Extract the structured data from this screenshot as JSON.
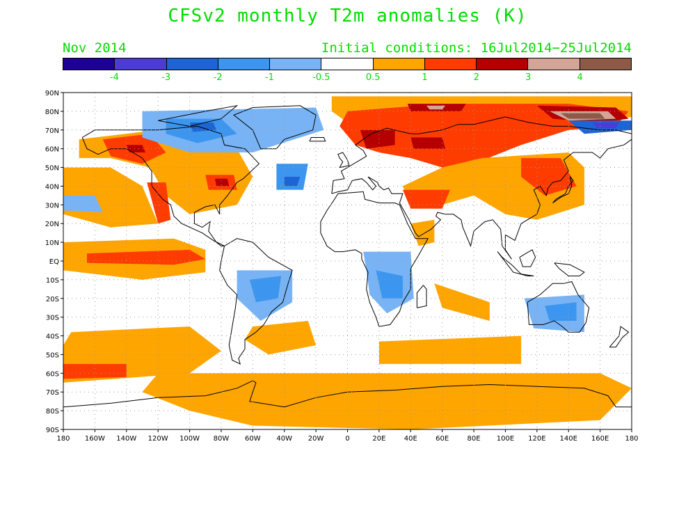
{
  "header": {
    "title": "CFSv2 monthly T2m anomalies (K)",
    "period": "Nov 2014",
    "initial_conditions": "Initial conditions: 16Jul2014−25Jul2014",
    "text_color": "#00dd00"
  },
  "legend": {
    "colors": [
      "#1f0096",
      "#4c3cd2",
      "#1e64d2",
      "#3c96f0",
      "#78b4f5",
      "#ffffff",
      "#ffa500",
      "#ff3c00",
      "#b40000",
      "#d2a596",
      "#8c5a46"
    ],
    "labels": [
      "-4",
      "-3",
      "-2",
      "-1",
      "-0.5",
      "0.5",
      "1",
      "2",
      "3",
      "4"
    ]
  },
  "axes": {
    "lat_labels": [
      "90N",
      "80N",
      "70N",
      "60N",
      "50N",
      "40N",
      "30N",
      "20N",
      "10N",
      "EQ",
      "10S",
      "20S",
      "30S",
      "40S",
      "50S",
      "60S",
      "70S",
      "80S",
      "90S"
    ],
    "lon_labels": [
      "180",
      "160W",
      "140W",
      "120W",
      "100W",
      "80W",
      "60W",
      "40W",
      "20W",
      "0",
      "20E",
      "40E",
      "60E",
      "80E",
      "100E",
      "120E",
      "140E",
      "160E",
      "180"
    ]
  },
  "map": {
    "projection": "equirectangular",
    "lon_range": [
      -180,
      180
    ],
    "lat_range": [
      -90,
      90
    ],
    "grid": "dotted",
    "anomaly_regions": [
      {
        "name": "arctic-ocean-warm",
        "color": "#ffa500",
        "points": [
          [
            -10,
            88
          ],
          [
            180,
            88
          ],
          [
            180,
            77
          ],
          [
            150,
            74
          ],
          [
            120,
            76
          ],
          [
            90,
            76
          ],
          [
            60,
            73
          ],
          [
            40,
            70
          ],
          [
            20,
            72
          ],
          [
            0,
            74
          ],
          [
            -10,
            80
          ]
        ]
      },
      {
        "name": "siberia-warm",
        "color": "#ff3c00",
        "points": [
          [
            0,
            80
          ],
          [
            60,
            84
          ],
          [
            140,
            84
          ],
          [
            178,
            80
          ],
          [
            170,
            72
          ],
          [
            140,
            70
          ],
          [
            110,
            62
          ],
          [
            80,
            52
          ],
          [
            60,
            50
          ],
          [
            40,
            55
          ],
          [
            20,
            58
          ],
          [
            5,
            62
          ],
          [
            -5,
            72
          ]
        ]
      },
      {
        "name": "siberia-strong",
        "color": "#b40000",
        "points": [
          [
            120,
            83
          ],
          [
            170,
            82
          ],
          [
            178,
            76
          ],
          [
            160,
            74
          ],
          [
            130,
            76
          ]
        ]
      },
      {
        "name": "east-siberia-extreme",
        "color": "#d2a596",
        "points": [
          [
            128,
            80
          ],
          [
            165,
            80
          ],
          [
            170,
            76
          ],
          [
            140,
            75
          ]
        ]
      },
      {
        "name": "east-siberia-max",
        "color": "#8c5a46",
        "points": [
          [
            135,
            79
          ],
          [
            160,
            79
          ],
          [
            163,
            76
          ],
          [
            140,
            76
          ]
        ]
      },
      {
        "name": "north-siberia-strong",
        "color": "#b40000",
        "points": [
          [
            38,
            84
          ],
          [
            75,
            84
          ],
          [
            72,
            80
          ],
          [
            40,
            80
          ]
        ]
      },
      {
        "name": "north-siberia-peak",
        "color": "#d2a596",
        "points": [
          [
            50,
            83
          ],
          [
            62,
            83
          ],
          [
            60,
            81
          ],
          [
            52,
            81
          ]
        ]
      },
      {
        "name": "west-siberia-strong",
        "color": "#b40000",
        "points": [
          [
            40,
            66
          ],
          [
            60,
            66
          ],
          [
            62,
            60
          ],
          [
            42,
            60
          ]
        ]
      },
      {
        "name": "scandinavia-warm",
        "color": "#b40000",
        "points": [
          [
            8,
            70
          ],
          [
            30,
            70
          ],
          [
            30,
            62
          ],
          [
            12,
            60
          ]
        ]
      },
      {
        "name": "east-asia-warm",
        "color": "#ffa500",
        "points": [
          [
            85,
            55
          ],
          [
            140,
            58
          ],
          [
            150,
            50
          ],
          [
            150,
            30
          ],
          [
            120,
            22
          ],
          [
            100,
            25
          ],
          [
            80,
            35
          ],
          [
            60,
            30
          ],
          [
            40,
            30
          ],
          [
            35,
            40
          ],
          [
            60,
            50
          ]
        ]
      },
      {
        "name": "east-asia-strong",
        "color": "#ff3c00",
        "points": [
          [
            110,
            55
          ],
          [
            135,
            55
          ],
          [
            145,
            40
          ],
          [
            125,
            35
          ],
          [
            110,
            45
          ]
        ]
      },
      {
        "name": "middle-east-warm",
        "color": "#ff3c00",
        "points": [
          [
            35,
            38
          ],
          [
            65,
            38
          ],
          [
            60,
            28
          ],
          [
            40,
            28
          ]
        ]
      },
      {
        "name": "arabia-warm",
        "color": "#ffa500",
        "points": [
          [
            40,
            20
          ],
          [
            55,
            22
          ],
          [
            55,
            10
          ],
          [
            45,
            8
          ]
        ]
      },
      {
        "name": "north-america-warm",
        "color": "#ffa500",
        "points": [
          [
            -170,
            65
          ],
          [
            -120,
            70
          ],
          0,
          [
            -70,
            60
          ],
          [
            -60,
            45
          ],
          [
            -70,
            30
          ],
          [
            -100,
            25
          ],
          [
            -115,
            35
          ],
          [
            -125,
            50
          ],
          [
            -150,
            55
          ],
          [
            -170,
            55
          ]
        ]
      },
      {
        "name": "alaska-strong",
        "color": "#ff3c00",
        "points": [
          [
            -155,
            65
          ],
          [
            -125,
            68
          ],
          [
            -115,
            58
          ],
          [
            -130,
            52
          ],
          [
            -150,
            56
          ]
        ]
      },
      {
        "name": "alaska-peak",
        "color": "#b40000",
        "points": [
          [
            -140,
            62
          ],
          [
            -130,
            62
          ],
          [
            -128,
            58
          ],
          [
            -138,
            58
          ]
        ]
      },
      {
        "name": "great-lakes-strong",
        "color": "#ff3c00",
        "points": [
          [
            -90,
            46
          ],
          [
            -72,
            46
          ],
          [
            -70,
            38
          ],
          [
            -88,
            38
          ]
        ]
      },
      {
        "name": "great-lakes-peak",
        "color": "#b40000",
        "points": [
          [
            -84,
            44
          ],
          [
            -76,
            44
          ],
          [
            -75,
            40
          ],
          [
            -83,
            40
          ]
        ]
      },
      {
        "name": "west-coast-warm",
        "color": "#ff3c00",
        "points": [
          [
            -127,
            42
          ],
          [
            -115,
            42
          ],
          [
            -112,
            22
          ],
          [
            -120,
            20
          ]
        ]
      },
      {
        "name": "pacific-north-warm",
        "color": "#ffa500",
        "points": [
          [
            -180,
            50
          ],
          [
            -150,
            50
          ],
          [
            -130,
            40
          ],
          [
            -120,
            20
          ],
          [
            -150,
            18
          ],
          [
            -180,
            25
          ]
        ]
      },
      {
        "name": "tropical-pacific-warm",
        "color": "#ffa500",
        "points": [
          [
            -180,
            10
          ],
          [
            -110,
            12
          ],
          [
            -90,
            6
          ],
          [
            -90,
            -6
          ],
          [
            -130,
            -10
          ],
          [
            -180,
            -5
          ]
        ]
      },
      {
        "name": "equatorial-strong",
        "color": "#ff3c00",
        "points": [
          [
            -165,
            4
          ],
          [
            -100,
            6
          ],
          [
            -90,
            1
          ],
          [
            -110,
            -2
          ],
          [
            -165,
            -1
          ]
        ]
      },
      {
        "name": "south-pacific-warm",
        "color": "#ffa500",
        "points": [
          [
            -175,
            -38
          ],
          [
            -100,
            -35
          ],
          [
            -80,
            -48
          ],
          [
            -100,
            -60
          ],
          [
            -180,
            -65
          ],
          [
            -180,
            -45
          ]
        ]
      },
      {
        "name": "south-pacific-strong",
        "color": "#ff3c00",
        "points": [
          [
            -180,
            -55
          ],
          [
            -140,
            -55
          ],
          [
            -140,
            -62
          ],
          [
            -180,
            -63
          ]
        ]
      },
      {
        "name": "southern-ocean-warm",
        "color": "#ffa500",
        "points": [
          [
            -120,
            -60
          ],
          [
            160,
            -60
          ],
          [
            180,
            -68
          ],
          [
            160,
            -85
          ],
          [
            40,
            -90
          ],
          [
            -60,
            -88
          ],
          [
            -100,
            -80
          ],
          [
            -130,
            -70
          ]
        ]
      },
      {
        "name": "south-atlantic-warm",
        "color": "#ffa500",
        "points": [
          [
            -60,
            -35
          ],
          [
            -25,
            -32
          ],
          [
            -20,
            -45
          ],
          [
            -50,
            -50
          ],
          [
            -65,
            -42
          ]
        ]
      },
      {
        "name": "indian-ocean-warm",
        "color": "#ffa500",
        "points": [
          [
            20,
            -43
          ],
          [
            110,
            -40
          ],
          [
            110,
            -55
          ],
          [
            20,
            -55
          ]
        ]
      },
      {
        "name": "indian-ocean-band",
        "color": "#ffa500",
        "points": [
          [
            55,
            -12
          ],
          [
            90,
            -22
          ],
          [
            90,
            -32
          ],
          [
            60,
            -25
          ]
        ]
      },
      {
        "name": "greenland-cold",
        "color": "#78b4f5",
        "points": [
          [
            -130,
            80
          ],
          [
            -20,
            82
          ],
          [
            -15,
            70
          ],
          [
            -60,
            58
          ],
          [
            -100,
            58
          ],
          [
            -130,
            66
          ]
        ]
      },
      {
        "name": "canada-cold",
        "color": "#3c96f0",
        "points": [
          [
            -115,
            76
          ],
          [
            -80,
            76
          ],
          [
            -70,
            68
          ],
          [
            -95,
            63
          ],
          [
            -115,
            68
          ]
        ]
      },
      {
        "name": "canada-cold-strong",
        "color": "#1e64d2",
        "points": [
          [
            -100,
            74
          ],
          [
            -85,
            74
          ],
          [
            -83,
            70
          ],
          [
            -98,
            69
          ]
        ]
      },
      {
        "name": "atlantic-cold",
        "color": "#3c96f0",
        "points": [
          [
            -45,
            52
          ],
          [
            -25,
            52
          ],
          [
            -28,
            38
          ],
          [
            -45,
            38
          ]
        ]
      },
      {
        "name": "atlantic-cold-strong",
        "color": "#1e64d2",
        "points": [
          [
            -40,
            45
          ],
          [
            -30,
            45
          ],
          [
            -32,
            40
          ],
          [
            -40,
            40
          ]
        ]
      },
      {
        "name": "chukchi-cold",
        "color": "#1e64d2",
        "points": [
          [
            140,
            75
          ],
          [
            180,
            75
          ],
          [
            180,
            70
          ],
          [
            150,
            68
          ]
        ]
      },
      {
        "name": "chukchi-cold-strong",
        "color": "#4c3cd2",
        "points": [
          [
            155,
            74
          ],
          [
            172,
            74
          ],
          [
            170,
            71
          ],
          [
            158,
            71
          ]
        ]
      },
      {
        "name": "south-america-cold",
        "color": "#78b4f5",
        "points": [
          [
            -70,
            -5
          ],
          [
            -35,
            -5
          ],
          [
            -35,
            -22
          ],
          [
            -55,
            -32
          ],
          [
            -70,
            -20
          ]
        ]
      },
      {
        "name": "brazil-cold",
        "color": "#3c96f0",
        "points": [
          [
            -62,
            -10
          ],
          [
            -42,
            -8
          ],
          [
            -44,
            -20
          ],
          [
            -58,
            -22
          ]
        ]
      },
      {
        "name": "africa-cold",
        "color": "#78b4f5",
        "points": [
          [
            10,
            5
          ],
          [
            40,
            5
          ],
          [
            42,
            -20
          ],
          [
            25,
            -28
          ],
          [
            14,
            -18
          ],
          [
            12,
            -5
          ]
        ]
      },
      {
        "name": "africa-cold-core",
        "color": "#3c96f0",
        "points": [
          [
            18,
            -5
          ],
          [
            35,
            -8
          ],
          [
            35,
            -20
          ],
          [
            22,
            -20
          ]
        ]
      },
      {
        "name": "australia-cold",
        "color": "#78b4f5",
        "points": [
          [
            112,
            -20
          ],
          [
            150,
            -18
          ],
          [
            150,
            -38
          ],
          [
            118,
            -36
          ]
        ]
      },
      {
        "name": "australia-cold-core",
        "color": "#3c96f0",
        "points": [
          [
            125,
            -24
          ],
          [
            145,
            -22
          ],
          [
            145,
            -32
          ],
          [
            128,
            -32
          ]
        ]
      },
      {
        "name": "west-pacific-cold",
        "color": "#78b4f5",
        "points": [
          [
            -180,
            35
          ],
          [
            -160,
            35
          ],
          [
            -155,
            26
          ],
          [
            -180,
            27
          ]
        ]
      }
    ]
  }
}
